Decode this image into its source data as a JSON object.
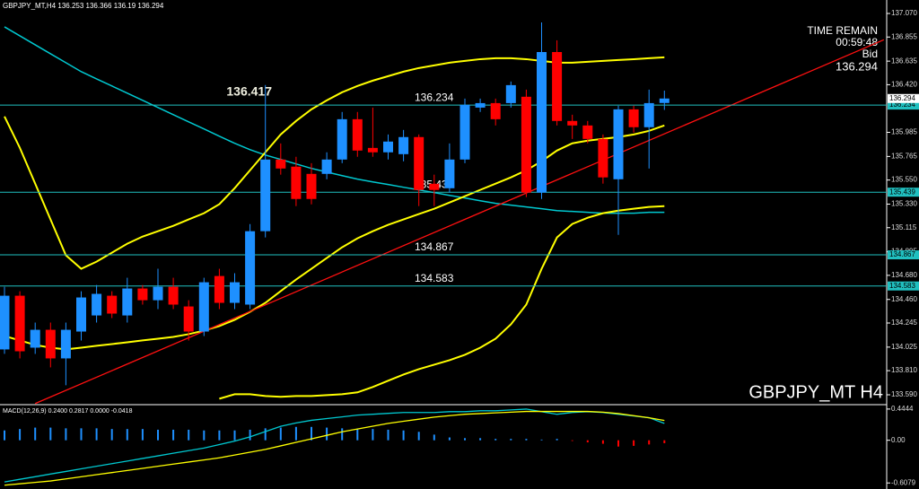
{
  "header": {
    "symbol": "GBPJPY_MT,H4"
  },
  "chart_data": [
    {
      "type": "candlestick",
      "open": [
        134.004,
        134.494,
        134.02,
        134.183,
        133.922,
        134.167,
        134.314,
        134.494,
        134.314,
        134.56,
        134.453,
        134.576,
        134.396,
        134.167,
        134.674,
        134.429,
        134.413,
        135.083,
        135.737,
        135.672,
        135.606,
        135.606,
        135.737,
        136.105,
        135.843,
        135.803,
        135.786,
        135.942,
        135.516,
        135.475,
        135.737,
        136.211,
        136.252,
        136.252,
        136.31,
        135.435,
        136.718,
        136.089,
        136.048,
        135.925,
        135.557,
        136.195,
        136.032,
        136.253
      ],
      "high": [
        134.576,
        134.535,
        134.249,
        134.249,
        134.249,
        134.535,
        134.592,
        134.535,
        134.658,
        134.592,
        134.74,
        134.658,
        134.453,
        134.658,
        134.74,
        134.699,
        135.148,
        136.417,
        135.884,
        135.762,
        135.704,
        135.803,
        136.171,
        136.171,
        136.211,
        135.966,
        136.007,
        135.966,
        135.599,
        135.884,
        136.293,
        136.293,
        136.293,
        136.449,
        136.375,
        136.988,
        136.825,
        136.146,
        136.089,
        135.966,
        136.228,
        136.228,
        136.375,
        136.366
      ],
      "low": [
        133.963,
        133.922,
        133.963,
        133.84,
        133.677,
        134.085,
        134.249,
        134.29,
        134.249,
        134.413,
        134.372,
        134.372,
        134.085,
        134.126,
        134.372,
        134.372,
        134.372,
        135.026,
        135.599,
        135.312,
        135.328,
        135.557,
        135.704,
        135.762,
        135.762,
        135.737,
        135.721,
        135.312,
        135.312,
        135.435,
        135.704,
        136.171,
        136.048,
        136.211,
        135.394,
        135.377,
        136.048,
        135.925,
        135.885,
        135.517,
        135.05,
        135.983,
        135.655,
        136.19
      ],
      "close": [
        134.494,
        133.987,
        134.183,
        133.922,
        134.183,
        134.478,
        134.511,
        134.331,
        134.56,
        134.453,
        134.576,
        134.413,
        134.167,
        134.617,
        134.429,
        134.617,
        135.083,
        135.737,
        135.655,
        135.377,
        135.377,
        135.737,
        136.105,
        135.819,
        135.803,
        135.901,
        135.942,
        135.459,
        135.459,
        135.737,
        136.236,
        136.252,
        136.105,
        136.416,
        135.435,
        136.718,
        136.089,
        136.048,
        135.925,
        135.574,
        136.195,
        136.032,
        136.252,
        136.294
      ],
      "up_color": "#1e90ff",
      "down_color": "#ff0000",
      "ylim": [
        133.508,
        137.193
      ],
      "yticks": [
        {
          "value": 137.07,
          "label": "137.070"
        },
        136.855,
        136.635,
        {
          "value": 136.42,
          "label": "136.420"
        },
        135.985,
        135.765,
        {
          "value": 135.55,
          "label": "135.550"
        },
        {
          "value": 135.33,
          "label": "135.330"
        },
        135.115,
        134.895,
        {
          "value": 134.68,
          "label": "134.680"
        },
        {
          "value": 134.46,
          "label": "134.460"
        },
        134.245,
        134.025,
        {
          "value": 133.81,
          "label": "133.810"
        },
        {
          "value": 133.59,
          "label": "133.590"
        }
      ],
      "lines": [
        {
          "color": "#00c8d0",
          "width": 1.5,
          "values": [
            136.948,
            136.866,
            136.784,
            136.702,
            136.621,
            136.539,
            136.473,
            136.408,
            136.343,
            136.277,
            136.212,
            136.146,
            136.081,
            136.016,
            135.95,
            135.885,
            135.827,
            135.778,
            135.738,
            135.697,
            135.656,
            135.623,
            135.59,
            135.558,
            135.533,
            135.509,
            135.484,
            135.46,
            135.435,
            135.41,
            135.386,
            135.361,
            135.337,
            135.321,
            135.304,
            135.288,
            135.271,
            135.263,
            135.255,
            135.247,
            135.247,
            135.247,
            135.255,
            135.255
          ]
        },
        {
          "color": "#ffff00",
          "width": 2,
          "values": [
            134.127,
            134.086,
            134.045,
            134.02,
            134.004,
            134.02,
            134.037,
            134.053,
            134.069,
            134.086,
            134.102,
            134.118,
            134.143,
            134.176,
            134.217,
            134.274,
            134.347,
            134.429,
            134.536,
            134.642,
            134.74,
            134.838,
            134.936,
            135.018,
            135.083,
            135.141,
            135.19,
            135.239,
            135.288,
            135.345,
            135.402,
            135.46,
            135.517,
            135.574,
            135.639,
            135.721,
            135.819,
            135.885,
            135.909,
            135.926,
            135.942,
            135.966,
            135.999,
            136.048
          ]
        },
        {
          "color": "#ffff00",
          "width": 2,
          "values": [
            136.13,
            135.844,
            135.517,
            135.19,
            134.863,
            134.74,
            134.805,
            134.887,
            134.969,
            135.034,
            135.083,
            135.132,
            135.19,
            135.247,
            135.329,
            135.476,
            135.639,
            135.803,
            135.966,
            136.089,
            136.195,
            136.277,
            136.351,
            136.408,
            136.457,
            136.498,
            136.539,
            136.572,
            136.596,
            136.621,
            136.637,
            136.653,
            136.662,
            136.662,
            136.653,
            136.637,
            136.621,
            136.621,
            136.629,
            136.637,
            136.645,
            136.653,
            136.662,
            136.67
          ]
        },
        {
          "color": "#ffff00",
          "width": 2,
          "values": [
            null,
            null,
            null,
            null,
            null,
            null,
            null,
            null,
            null,
            null,
            null,
            null,
            null,
            null,
            133.554,
            133.595,
            133.595,
            133.579,
            133.571,
            133.579,
            133.579,
            133.587,
            133.595,
            133.612,
            133.661,
            133.718,
            133.775,
            133.824,
            133.865,
            133.906,
            133.955,
            134.02,
            134.102,
            134.233,
            134.413,
            134.74,
            135.026,
            135.149,
            135.206,
            135.247,
            135.271,
            135.288,
            135.304,
            135.312
          ]
        }
      ],
      "levels": [
        136.234,
        135.439,
        134.867,
        134.583
      ],
      "level_color": "#20c0c0",
      "trendline": {
        "x": [
          2,
          57.3
        ],
        "y": [
          133.51,
          136.83
        ],
        "color": "#ff1010"
      },
      "symbol_label": "GBPJPY_MT H4",
      "time_remain": {
        "label": "TIME REMAIN",
        "value": "00:59:48",
        "bid_label": "Bid"
      }
    },
    {
      "type": "macd",
      "label": "MACD(12,26,9)",
      "legend_values": [
        {
          "value": 0.24,
          "label": "0.2400"
        },
        {
          "value": 0.2817,
          "label": "0.2817"
        },
        {
          "value": 0,
          "label": "0.0000"
        },
        -0.0418
      ],
      "histogram": [
        0.14,
        0.16,
        0.18,
        0.18,
        0.17,
        0.17,
        0.17,
        0.16,
        0.16,
        0.16,
        0.15,
        0.15,
        0.15,
        0.14,
        0.14,
        0.14,
        0.15,
        0.17,
        0.18,
        0.19,
        0.19,
        0.18,
        0.17,
        0.16,
        0.16,
        0.15,
        0.14,
        0.12,
        0.08,
        0.04,
        0.03,
        0.03,
        0.02,
        0.02,
        0.02,
        0.01,
        0.02,
        -0.01,
        -0.03,
        -0.05,
        -0.09,
        -0.08,
        -0.06,
        -0.0418
      ],
      "main": [
        -0.593,
        -0.556,
        -0.519,
        -0.481,
        -0.444,
        -0.407,
        -0.37,
        -0.333,
        -0.296,
        -0.259,
        -0.222,
        -0.185,
        -0.148,
        -0.111,
        -0.062,
        -0.012,
        0.049,
        0.123,
        0.198,
        0.247,
        0.284,
        0.309,
        0.333,
        0.358,
        0.37,
        0.383,
        0.395,
        0.395,
        0.395,
        0.407,
        0.407,
        0.42,
        0.42,
        0.432,
        0.444,
        0.407,
        0.37,
        0.395,
        0.407,
        0.395,
        0.37,
        0.346,
        0.321,
        0.24
      ],
      "signal": [
        -0.64,
        -0.62,
        -0.6,
        -0.58,
        -0.55,
        -0.52,
        -0.49,
        -0.46,
        -0.43,
        -0.4,
        -0.37,
        -0.34,
        -0.31,
        -0.28,
        -0.25,
        -0.21,
        -0.17,
        -0.13,
        -0.08,
        -0.03,
        0.02,
        0.07,
        0.12,
        0.16,
        0.2,
        0.24,
        0.27,
        0.3,
        0.33,
        0.35,
        0.37,
        0.38,
        0.39,
        0.4,
        0.41,
        0.41,
        0.41,
        0.41,
        0.41,
        0.4,
        0.38,
        0.35,
        0.32,
        0.2817
      ],
      "hist_color": "#1e90ff",
      "neg_color": "#ff0000",
      "main_color": "#00c8d0",
      "signal_color": "#ffff00",
      "ylim": [
        -0.694,
        0.494
      ],
      "yticks": [
        0.4444,
        {
          "value": 0,
          "label": "0.00"
        },
        -0.6079
      ]
    }
  ]
}
